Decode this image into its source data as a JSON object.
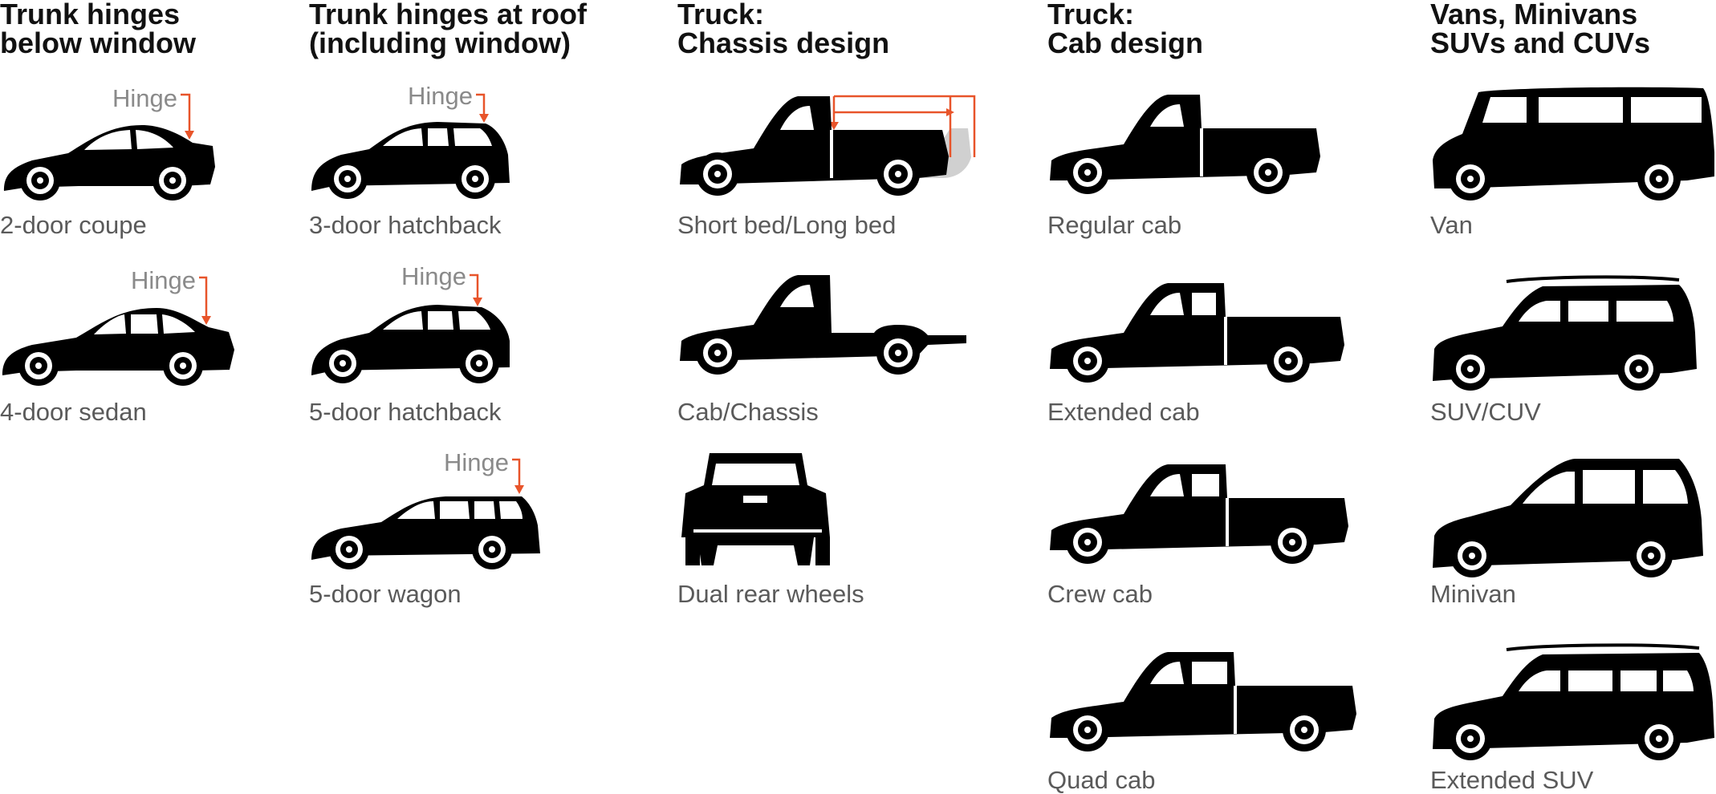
{
  "columns": [
    {
      "header": "Trunk hinges\nbelow window",
      "items": [
        {
          "caption": "2-door coupe",
          "hinge_label": "Hinge",
          "icon": "coupe-icon"
        },
        {
          "caption": "4-door sedan",
          "hinge_label": "Hinge",
          "icon": "sedan-icon"
        }
      ]
    },
    {
      "header": "Trunk hinges at roof\n(including window)",
      "items": [
        {
          "caption": "3-door hatchback",
          "hinge_label": "Hinge",
          "icon": "hatchback-3-door-icon"
        },
        {
          "caption": "5-door hatchback",
          "hinge_label": "Hinge",
          "icon": "hatchback-5-door-icon"
        },
        {
          "caption": "5-door wagon",
          "hinge_label": "Hinge",
          "icon": "wagon-icon"
        }
      ]
    },
    {
      "header": "Truck:\nChassis design",
      "items": [
        {
          "caption": "Short bed/Long bed",
          "icon": "pickup-bed-length-icon"
        },
        {
          "caption": "Cab/Chassis",
          "icon": "cab-chassis-icon"
        },
        {
          "caption": "Dual rear wheels",
          "icon": "dual-rear-wheels-icon"
        }
      ]
    },
    {
      "header": "Truck:\nCab design",
      "items": [
        {
          "caption": "Regular cab",
          "icon": "regular-cab-icon"
        },
        {
          "caption": "Extended cab",
          "icon": "extended-cab-icon"
        },
        {
          "caption": "Crew cab",
          "icon": "crew-cab-icon"
        },
        {
          "caption": "Quad cab",
          "icon": "quad-cab-icon"
        }
      ]
    },
    {
      "header": "Vans, Minivans\nSUVs and CUVs",
      "items": [
        {
          "caption": "Van",
          "icon": "van-icon"
        },
        {
          "caption": "SUV/CUV",
          "icon": "suv-icon"
        },
        {
          "caption": "Minivan",
          "icon": "minivan-icon"
        },
        {
          "caption": "Extended SUV",
          "icon": "extended-suv-icon"
        }
      ]
    }
  ],
  "colors": {
    "silhouette": "#000000",
    "hinge_arrow": "#e8542a",
    "hinge_label": "#8a8a8a",
    "caption": "#5a5a5a",
    "bed_ghost": "#d0d0d0"
  }
}
